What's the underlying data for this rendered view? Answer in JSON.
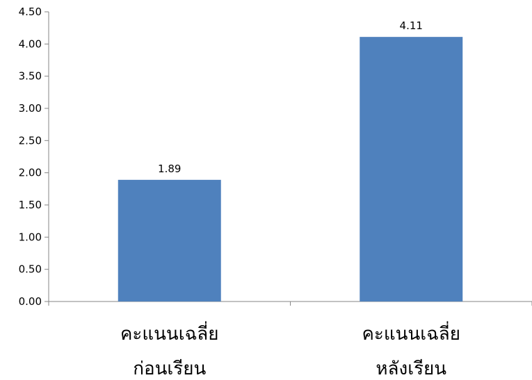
{
  "chart_data": {
    "type": "bar",
    "title": "",
    "xlabel": "",
    "ylabel": "",
    "categories": [
      [
        "คะแนนเฉลี่ย",
        "ก่อนเรียน"
      ],
      [
        "คะแนนเฉลี่ย",
        "หลังเรียน"
      ]
    ],
    "values": [
      1.89,
      4.11
    ],
    "value_labels": [
      "1.89",
      "4.11"
    ],
    "ylim": [
      0,
      4.5
    ],
    "yticks": [
      0,
      0.5,
      1,
      1.5,
      2,
      2.5,
      3,
      3.5,
      4,
      4.5
    ],
    "ytick_labels": [
      "0.00",
      "0.50",
      "1.00",
      "1.50",
      "2.00",
      "2.50",
      "3.00",
      "3.50",
      "4.00",
      "4.50"
    ],
    "grid": false,
    "legend": "none",
    "bar_color": "#4F81BD"
  }
}
